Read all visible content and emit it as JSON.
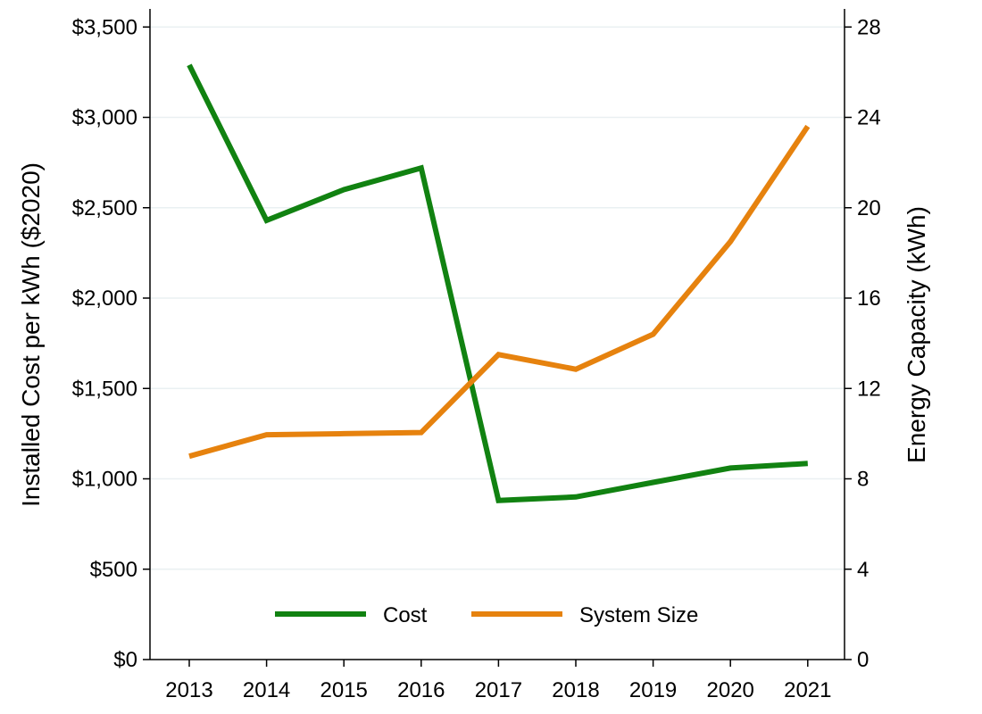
{
  "chart_data": {
    "type": "line",
    "title": "",
    "x": [
      2013,
      2014,
      2015,
      2016,
      2017,
      2018,
      2019,
      2020,
      2021
    ],
    "x_tick_labels": [
      "2013",
      "2014",
      "2015",
      "2016",
      "2017",
      "2018",
      "2019",
      "2020",
      "2021"
    ],
    "ylabel_left": "Installed Cost per kWh ($2020)",
    "ylabel_right": "Energy Capacity (kWh)",
    "ylim_left": [
      0,
      3600
    ],
    "ylim_right": [
      0,
      28.8
    ],
    "yticks_left": [
      0,
      500,
      1000,
      1500,
      2000,
      2500,
      3000,
      3500
    ],
    "ytick_labels_left": [
      "$0",
      "$500",
      "$1,000",
      "$1,500",
      "$2,000",
      "$2,500",
      "$3,000",
      "$3,500"
    ],
    "yticks_right": [
      0,
      4,
      8,
      12,
      16,
      20,
      24,
      28
    ],
    "ytick_labels_right": [
      "0",
      "4",
      "8",
      "12",
      "16",
      "20",
      "24",
      "28"
    ],
    "grid": true,
    "legend_position": "bottom-center",
    "series": [
      {
        "name": "Cost",
        "axis": "left",
        "color": "#118211",
        "values": [
          3290,
          2430,
          2600,
          2720,
          880,
          900,
          980,
          1060,
          1085
        ]
      },
      {
        "name": "System Size",
        "axis": "right",
        "color": "#e6820e",
        "values": [
          9.0,
          9.95,
          10.0,
          10.05,
          13.5,
          12.85,
          14.4,
          18.5,
          23.6
        ]
      }
    ]
  }
}
